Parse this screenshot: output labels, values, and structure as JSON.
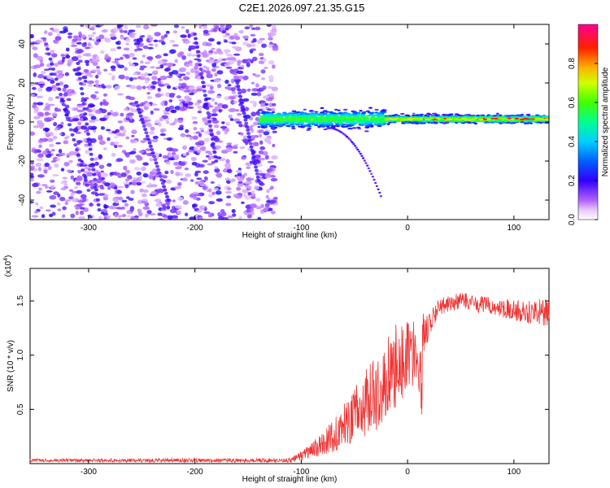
{
  "title": "C2E1.2026.097.21.35.G15",
  "chart_data": [
    {
      "type": "heatmap",
      "name": "spectrogram",
      "xlabel": "Height of straight line (km)",
      "ylabel": "Frequency (Hz)",
      "xlim": [
        -355,
        133
      ],
      "ylim": [
        -50,
        50
      ],
      "xticks": [
        -300,
        -200,
        -100,
        0,
        100
      ],
      "yticks": [
        -40,
        -20,
        0,
        20,
        40
      ],
      "colorbar": {
        "label": "Normalized spectral amplitude",
        "range": [
          0,
          1
        ],
        "ticks": [
          0.0,
          0.2,
          0.4,
          0.6,
          0.8
        ],
        "colormap": [
          "#ffffff",
          "#c070ff",
          "#6a00ff",
          "#0000ff",
          "#00c8ff",
          "#00ff80",
          "#80ff00",
          "#ffff00",
          "#ff8000",
          "#ff0000",
          "#ff0080"
        ]
      },
      "features": {
        "noise_region_x": [
          -355,
          -130
        ],
        "signal_band": {
          "x": [
            -140,
            133
          ],
          "center_hz": 1.5,
          "width_hz": 6
        },
        "faint_trace": {
          "x": [
            -75,
            -25
          ],
          "freq_hz": [
            -3,
            -38
          ]
        }
      }
    },
    {
      "type": "line",
      "name": "snr",
      "xlabel": "Height of straight line (km)",
      "ylabel": "SNR (10 * v/v)",
      "scale_label": "(x10",
      "scale_exponent": "4",
      "xlim": [
        -355,
        133
      ],
      "ylim": [
        0,
        18000
      ],
      "xticks": [
        -300,
        -200,
        -100,
        0,
        100
      ],
      "yticks": [
        0.5,
        1.0,
        1.5
      ],
      "ytick_labels": [
        "0.5",
        "1.0",
        "1.5"
      ],
      "color": "#ee3333",
      "series_envelope": {
        "x": [
          -355,
          -110,
          -90,
          -70,
          -50,
          -30,
          -10,
          0,
          10,
          20,
          30,
          50,
          80,
          110,
          133
        ],
        "mean": [
          300,
          300,
          1200,
          2500,
          4500,
          6500,
          9000,
          10000,
          10500,
          13000,
          14500,
          15000,
          14500,
          14000,
          14000
        ],
        "jitter": [
          150,
          200,
          700,
          1500,
          2500,
          3500,
          4000,
          3500,
          3000,
          1500,
          800,
          800,
          800,
          1000,
          1500
        ]
      }
    }
  ]
}
